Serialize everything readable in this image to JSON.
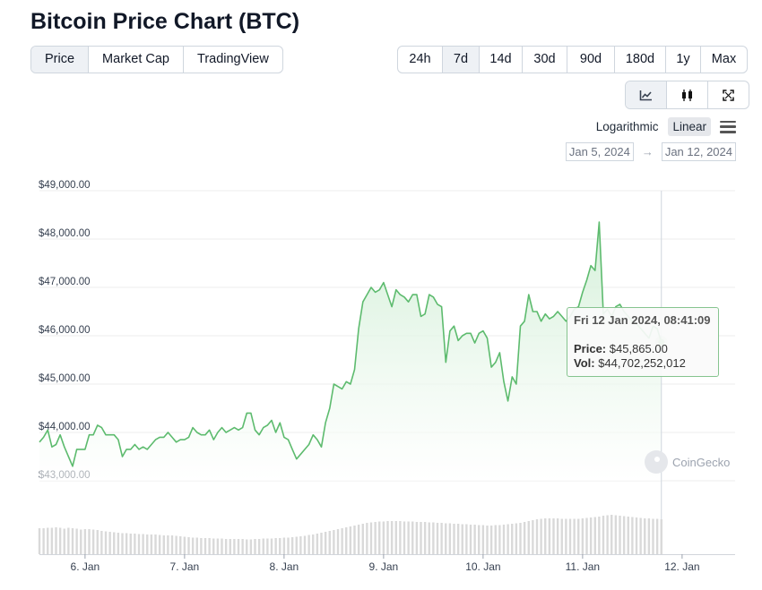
{
  "title": "Bitcoin Price Chart (BTC)",
  "tabs": [
    {
      "label": "Price",
      "active": true
    },
    {
      "label": "Market Cap",
      "active": false
    },
    {
      "label": "TradingView",
      "active": false
    }
  ],
  "ranges": [
    {
      "label": "24h",
      "active": false
    },
    {
      "label": "7d",
      "active": true
    },
    {
      "label": "14d",
      "active": false
    },
    {
      "label": "30d",
      "active": false
    },
    {
      "label": "90d",
      "active": false
    },
    {
      "label": "180d",
      "active": false
    },
    {
      "label": "1y",
      "active": false
    },
    {
      "label": "Max",
      "active": false
    }
  ],
  "views": [
    {
      "icon": "line-chart-icon",
      "active": true
    },
    {
      "icon": "candlestick-icon",
      "active": false
    },
    {
      "icon": "fullscreen-icon",
      "active": false
    }
  ],
  "scale": {
    "logarithmic": "Logarithmic",
    "linear": "Linear",
    "active": "Linear"
  },
  "date_range": {
    "from": "Jan 5, 2024",
    "arrow": "→",
    "to": "Jan 12, 2024"
  },
  "tooltip": {
    "date": "Fri 12 Jan 2024, 08:41:09",
    "price_label": "Price:",
    "price_value": "$45,865.00",
    "vol_label": "Vol:",
    "vol_value": "$44,702,252,012"
  },
  "brand": "CoinGecko",
  "colors": {
    "line": "#5dbb6e",
    "fill": "#e9f6ea",
    "volume": "#d9d9d9",
    "grid": "#ececec",
    "marker": "#7cc486"
  },
  "chart_data": {
    "type": "area",
    "x_tick_labels": [
      "6. Jan",
      "7. Jan",
      "8. Jan",
      "9. Jan",
      "10. Jan",
      "11. Jan",
      "12. Jan"
    ],
    "y_tick_labels": [
      "$43,000.00",
      "$44,000.00",
      "$45,000.00",
      "$46,000.00",
      "$47,000.00",
      "$48,000.00",
      "$49,000.00"
    ],
    "ylim": [
      43000,
      49000
    ],
    "grid": true,
    "x_start": "2024-01-05 13:00",
    "series": [
      {
        "name": "Price",
        "step_hours": 1,
        "values": [
          43800,
          43900,
          44050,
          43700,
          43750,
          43950,
          43700,
          43500,
          43300,
          43650,
          43650,
          43650,
          43950,
          43950,
          44150,
          44100,
          43950,
          43950,
          43950,
          43850,
          43500,
          43650,
          43650,
          43750,
          43650,
          43700,
          43650,
          43750,
          43850,
          43900,
          43900,
          44000,
          43900,
          43800,
          43850,
          43850,
          43900,
          44100,
          44000,
          43950,
          43950,
          44050,
          43850,
          44000,
          44100,
          44000,
          44050,
          44100,
          44050,
          44100,
          44400,
          44400,
          44050,
          43950,
          44100,
          44150,
          44250,
          44000,
          44200,
          43900,
          43850,
          43650,
          43450,
          43550,
          43650,
          43750,
          43950,
          43850,
          43700,
          44200,
          44500,
          45000,
          44950,
          44900,
          45050,
          45000,
          45300,
          46150,
          46700,
          46850,
          47000,
          46900,
          46950,
          47100,
          46850,
          46600,
          46950,
          46850,
          46800,
          46700,
          46850,
          46850,
          46400,
          46450,
          46850,
          46800,
          46650,
          46600,
          45450,
          46100,
          46200,
          45900,
          46000,
          46050,
          46050,
          45850,
          46050,
          46100,
          45950,
          45350,
          45450,
          45650,
          45050,
          44650,
          45150,
          45000,
          46200,
          46300,
          46850,
          46500,
          46500,
          46300,
          46450,
          46350,
          46400,
          46500,
          46400,
          46300,
          46400,
          46550,
          46600,
          46900,
          47150,
          47450,
          47350,
          48350,
          46450,
          46550,
          46400,
          46600,
          46650,
          46500,
          46400,
          46300,
          46250,
          46150,
          46050,
          45950,
          46200,
          46150,
          45865
        ]
      },
      {
        "name": "Vol",
        "step_hours": 1,
        "values": [
          58,
          58,
          59,
          59,
          60,
          59,
          57,
          59,
          58,
          57,
          55,
          56,
          56,
          55,
          54,
          52,
          51,
          50,
          49,
          48,
          47,
          47,
          46,
          46,
          45,
          45,
          44,
          44,
          44,
          43,
          42,
          42,
          42,
          41,
          40,
          39,
          38,
          37,
          37,
          36,
          36,
          36,
          35,
          35,
          35,
          34,
          34,
          34,
          34,
          34,
          33,
          33,
          34,
          34,
          35,
          35,
          35,
          36,
          36,
          37,
          37,
          38,
          39,
          40,
          41,
          43,
          44,
          46,
          48,
          50,
          52,
          54,
          56,
          58,
          60,
          62,
          64,
          66,
          68,
          70,
          71,
          72,
          73,
          73,
          74,
          74,
          74,
          74,
          73,
          73,
          73,
          72,
          72,
          72,
          71,
          71,
          70,
          70,
          69,
          69,
          68,
          68,
          67,
          67,
          66,
          66,
          65,
          65,
          64,
          64,
          65,
          65,
          66,
          67,
          68,
          69,
          70,
          72,
          74,
          76,
          78,
          79,
          80,
          80,
          80,
          80,
          79,
          79,
          79,
          79,
          79,
          80,
          81,
          82,
          83,
          84,
          86,
          87,
          88,
          87,
          86,
          85,
          84,
          83,
          82,
          81,
          80,
          80,
          79,
          79,
          78
        ]
      }
    ]
  }
}
